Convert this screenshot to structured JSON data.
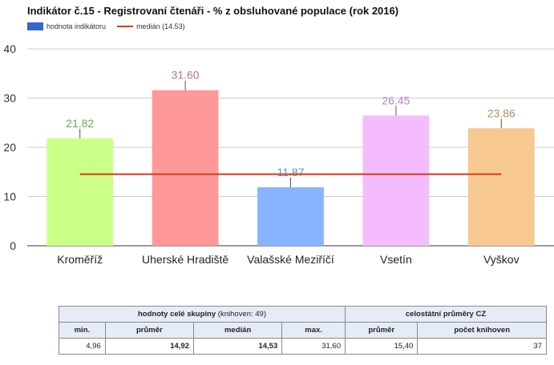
{
  "title": "Indikátor č.15 - Registrovaní čtenáři - % z obsluhované populace (rok 2016)",
  "legend": {
    "bar_label": "hodnota indikátoru",
    "line_label": "medián (14.53)"
  },
  "chart_data": {
    "type": "bar",
    "categories": [
      "Kroměříž",
      "Uherské Hradiště",
      "Valašské Meziříčí",
      "Vsetín",
      "Vyškov"
    ],
    "values": [
      21.82,
      31.6,
      11.87,
      26.45,
      23.86
    ],
    "value_labels": [
      "21.82",
      "31.60",
      "11.87",
      "26.45",
      "23.86"
    ],
    "bar_colors": [
      "#ccff88",
      "#ff9999",
      "#88b4ff",
      "#f5bbff",
      "#f7c890"
    ],
    "label_colors": [
      "#6aa84f",
      "#b27a7a",
      "#6b8cc7",
      "#b885c4",
      "#b59060"
    ],
    "median": 14.53,
    "median_color": "#dc3912",
    "ylim": [
      0,
      40
    ],
    "yticks": [
      "0",
      "10",
      "20",
      "30",
      "40"
    ],
    "ytick_values": [
      0,
      10,
      20,
      30,
      40
    ],
    "grid": true,
    "legend_position": "top-left"
  },
  "table": {
    "group_header": "hodnoty celé skupiny",
    "group_header_note": "(knihoven: 49)",
    "national_header": "celostátní průměry CZ",
    "col_min": "min.",
    "col_avg": "průměr",
    "col_median": "medián",
    "col_max": "max.",
    "col_nat_avg": "průměr",
    "col_nat_count": "počet knihoven",
    "val_min": "4,96",
    "val_avg": "14,92",
    "val_median": "14,53",
    "val_max": "31,60",
    "val_nat_avg": "15,40",
    "val_nat_count": "37"
  }
}
